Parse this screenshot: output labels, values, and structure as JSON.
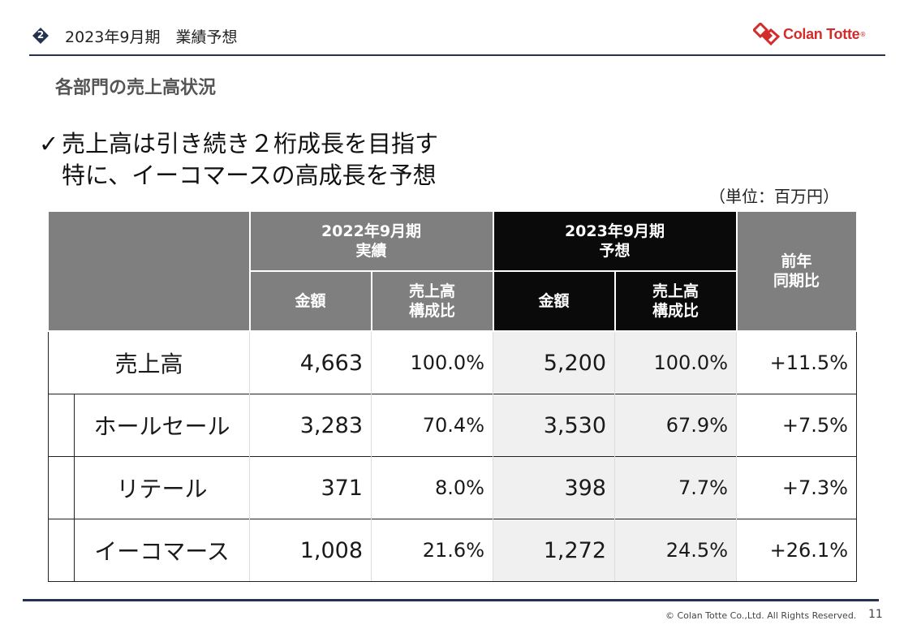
{
  "header": {
    "badge": "2",
    "title": "2023年9月期　業績予想",
    "logo_text": "Colan Totte",
    "logo_reg": "®"
  },
  "subtitle": "各部門の売上高状況",
  "lead": {
    "check": "✓",
    "line1": "売上高は引き続き２桁成長を目指す",
    "line2": "特に、イーコマースの高成長を予想"
  },
  "unit": "（単位：百万円）",
  "table": {
    "period_actual": "2022年9月期",
    "period_actual_sub": "実績",
    "period_forecast": "2023年9月期",
    "period_forecast_sub": "予想",
    "yoy_line1": "前年",
    "yoy_line2": "同期比",
    "amount": "金額",
    "ratio_line1": "売上高",
    "ratio_line2": "構成比",
    "rows": [
      {
        "label": "売上高",
        "a_amount": "4,663",
        "a_ratio": "100.0%",
        "f_amount": "5,200",
        "f_ratio": "100.0%",
        "yoy": "+11.5%"
      },
      {
        "label": "ホールセール",
        "a_amount": "3,283",
        "a_ratio": "70.4%",
        "f_amount": "3,530",
        "f_ratio": "67.9%",
        "yoy": "+7.5%"
      },
      {
        "label": "リテール",
        "a_amount": "371",
        "a_ratio": "8.0%",
        "f_amount": "398",
        "f_ratio": "7.7%",
        "yoy": "+7.3%"
      },
      {
        "label": "イーコマース",
        "a_amount": "1,008",
        "a_ratio": "21.6%",
        "f_amount": "1,272",
        "f_ratio": "24.5%",
        "yoy": "+26.1%"
      }
    ]
  },
  "footer": {
    "copyright": "© Colan Totte Co.,Ltd. All Rights Reserved.",
    "page": "11"
  },
  "colors": {
    "navy": "#24334f",
    "header_gray": "#7f7f7f",
    "header_black": "#0a0a0a",
    "brand_red": "#d42b2b"
  }
}
